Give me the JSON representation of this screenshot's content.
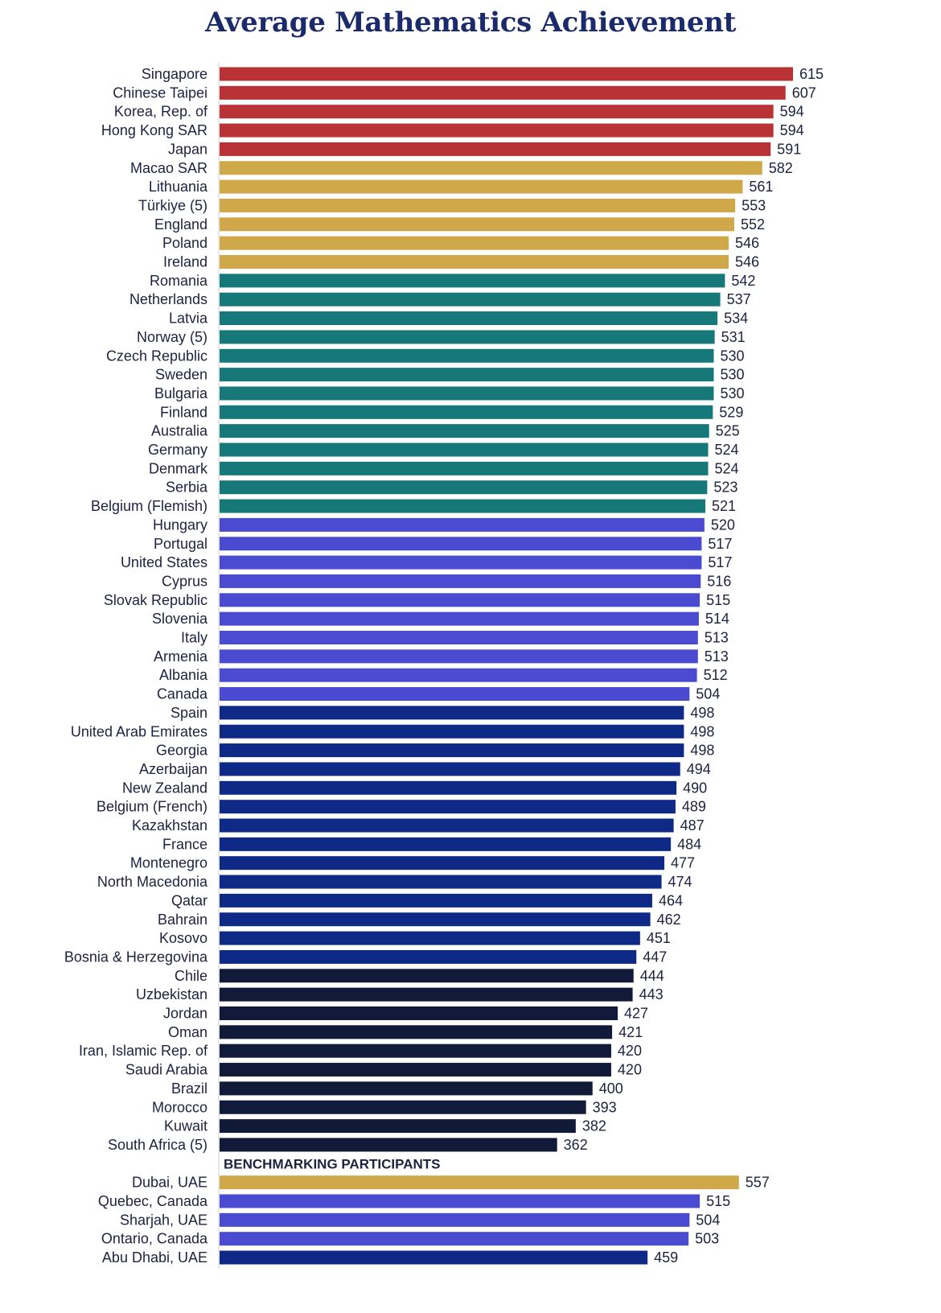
{
  "chart_data": {
    "type": "bar",
    "orientation": "horizontal",
    "title": "Average Mathematics Achievement",
    "xlabel": "",
    "ylabel": "",
    "xlim": [
      0,
      615
    ],
    "grid": false,
    "legend": "none",
    "colors": {
      "red": "#b93235",
      "gold": "#cfa84a",
      "teal": "#17787a",
      "violet": "#4a4bd0",
      "blue": "#0e2a86",
      "navy": "#111a38"
    },
    "categories": [
      "Singapore",
      "Chinese Taipei",
      "Korea, Rep. of",
      "Hong Kong SAR",
      "Japan",
      "Macao SAR",
      "Lithuania",
      "Türkiye (5)",
      "England",
      "Poland",
      "Ireland",
      "Romania",
      "Netherlands",
      "Latvia",
      "Norway (5)",
      "Czech Republic",
      "Sweden",
      "Bulgaria",
      "Finland",
      "Australia",
      "Germany",
      "Denmark",
      "Serbia",
      "Belgium (Flemish)",
      "Hungary",
      "Portugal",
      "United States",
      "Cyprus",
      "Slovak Republic",
      "Slovenia",
      "Italy",
      "Armenia",
      "Albania",
      "Canada",
      "Spain",
      "United Arab Emirates",
      "Georgia",
      "Azerbaijan",
      "New Zealand",
      "Belgium (French)",
      "Kazakhstan",
      "France",
      "Montenegro",
      "North Macedonia",
      "Qatar",
      "Bahrain",
      "Kosovo",
      "Bosnia & Herzegovina",
      "Chile",
      "Uzbekistan",
      "Jordan",
      "Oman",
      "Iran, Islamic Rep. of",
      "Saudi Arabia",
      "Brazil",
      "Morocco",
      "Kuwait",
      "South Africa (5)"
    ],
    "values": [
      615,
      607,
      594,
      594,
      591,
      582,
      561,
      553,
      552,
      546,
      546,
      542,
      537,
      534,
      531,
      530,
      530,
      530,
      529,
      525,
      524,
      524,
      523,
      521,
      520,
      517,
      517,
      516,
      515,
      514,
      513,
      513,
      512,
      504,
      498,
      498,
      498,
      494,
      490,
      489,
      487,
      484,
      477,
      474,
      464,
      462,
      451,
      447,
      444,
      443,
      427,
      421,
      420,
      420,
      400,
      393,
      382,
      362
    ],
    "bar_colors": [
      "red",
      "red",
      "red",
      "red",
      "red",
      "gold",
      "gold",
      "gold",
      "gold",
      "gold",
      "gold",
      "teal",
      "teal",
      "teal",
      "teal",
      "teal",
      "teal",
      "teal",
      "teal",
      "teal",
      "teal",
      "teal",
      "teal",
      "teal",
      "violet",
      "violet",
      "violet",
      "violet",
      "violet",
      "violet",
      "violet",
      "violet",
      "violet",
      "violet",
      "blue",
      "blue",
      "blue",
      "blue",
      "blue",
      "blue",
      "blue",
      "blue",
      "blue",
      "blue",
      "blue",
      "blue",
      "blue",
      "blue",
      "navy",
      "navy",
      "navy",
      "navy",
      "navy",
      "navy",
      "navy",
      "navy",
      "navy",
      "navy"
    ],
    "benchmark_label": "BENCHMARKING PARTICIPANTS",
    "benchmark_categories": [
      "Dubai, UAE",
      "Quebec, Canada",
      "Sharjah, UAE",
      "Ontario, Canada",
      "Abu Dhabi, UAE"
    ],
    "benchmark_values": [
      557,
      515,
      504,
      503,
      459
    ],
    "benchmark_colors": [
      "gold",
      "violet",
      "violet",
      "violet",
      "blue"
    ]
  }
}
